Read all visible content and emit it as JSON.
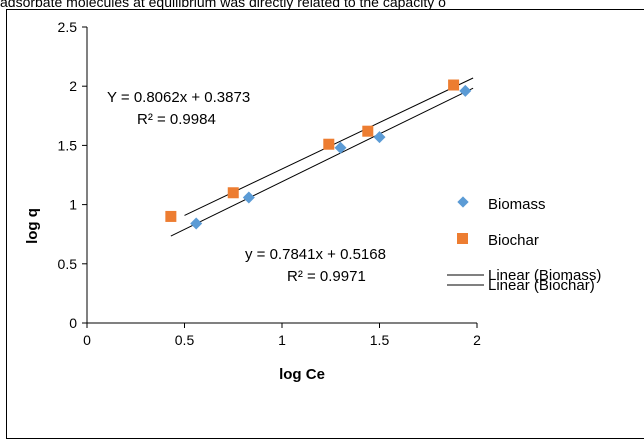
{
  "caption": "adsorbate molecules at equilibrium was directly related to the capacity o",
  "chart_data": {
    "type": "scatter",
    "xlabel": "log Ce",
    "ylabel": "log q",
    "xlim": [
      0,
      2
    ],
    "ylim": [
      0,
      2.5
    ],
    "x_ticks": [
      "0",
      "0.5",
      "1",
      "1.5",
      "2"
    ],
    "y_ticks": [
      "0",
      "0.5",
      "1",
      "1.5",
      "2",
      "2.5"
    ],
    "grid": false,
    "legend_position": "right",
    "series": [
      {
        "name": "Biomass",
        "marker": "diamond",
        "color": "#5b9bd5",
        "points": [
          [
            0.56,
            0.84
          ],
          [
            0.83,
            1.06
          ],
          [
            1.3,
            1.48
          ],
          [
            1.5,
            1.57
          ],
          [
            1.94,
            1.96
          ]
        ]
      },
      {
        "name": "Biochar",
        "marker": "square",
        "color": "#ed7d31",
        "points": [
          [
            0.43,
            0.9
          ],
          [
            0.75,
            1.1
          ],
          [
            1.24,
            1.51
          ],
          [
            1.44,
            1.62
          ],
          [
            1.88,
            2.01
          ]
        ]
      }
    ],
    "trendlines": [
      {
        "name": "Linear (Biomass)",
        "slope": 0.7841,
        "intercept": 0.5168,
        "x_range": [
          0.5,
          1.98
        ],
        "equation": "y = 0.7841x + 0.5168",
        "r2": "R² = 0.9971"
      },
      {
        "name": "Linear (Biochar)",
        "slope": 0.8062,
        "intercept": 0.3873,
        "x_range": [
          0.43,
          1.98
        ],
        "equation": "Y = 0.8062x + 0.3873",
        "r2": "R² = 0.9984"
      }
    ]
  }
}
